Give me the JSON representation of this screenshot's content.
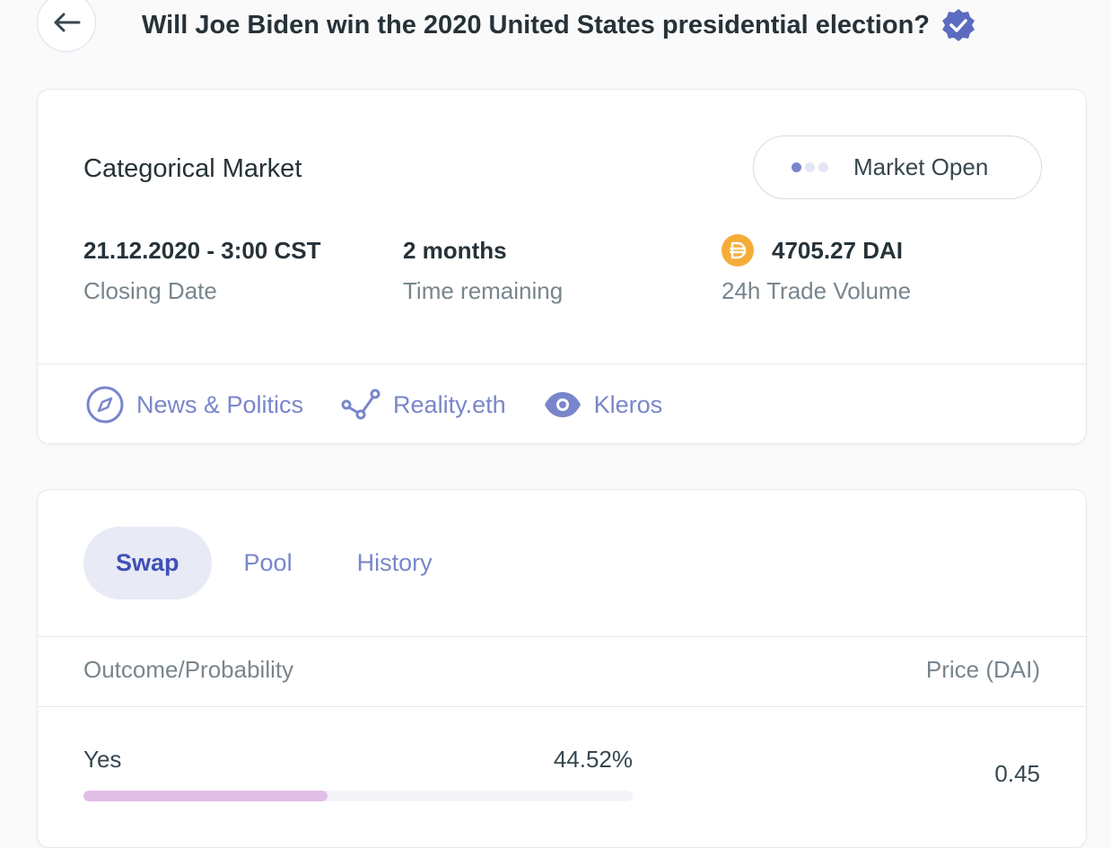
{
  "header": {
    "title": "Will Joe Biden win the 2020 United States presidential election?",
    "back_icon": "arrow-left-icon",
    "verified_icon": "verified-badge-icon"
  },
  "market": {
    "type": "Categorical Market",
    "status": "Market Open",
    "closing_date": {
      "value": "21.12.2020 - 3:00 CST",
      "label": "Closing Date"
    },
    "time_remaining": {
      "value": "2 months",
      "label": "Time remaining"
    },
    "volume": {
      "value": "4705.27 DAI",
      "label": "24h Trade Volume",
      "icon": "dai-coin-icon"
    },
    "links": [
      {
        "label": "News & Politics",
        "icon": "compass-icon"
      },
      {
        "label": "Reality.eth",
        "icon": "nodes-icon"
      },
      {
        "label": "Kleros",
        "icon": "eye-icon"
      }
    ]
  },
  "tabs": [
    {
      "label": "Swap",
      "active": true
    },
    {
      "label": "Pool"
    },
    {
      "label": "History"
    }
  ],
  "table": {
    "headers": [
      "Outcome/Probability",
      "Price (DAI)"
    ],
    "rows": [
      {
        "outcome": "Yes",
        "probability": "44.52%",
        "probability_value": 44.52,
        "price": "0.45",
        "bar_color": "#e1bee7"
      }
    ]
  },
  "colors": {
    "accent": "#7986cb",
    "dai": "#f5ac37"
  }
}
